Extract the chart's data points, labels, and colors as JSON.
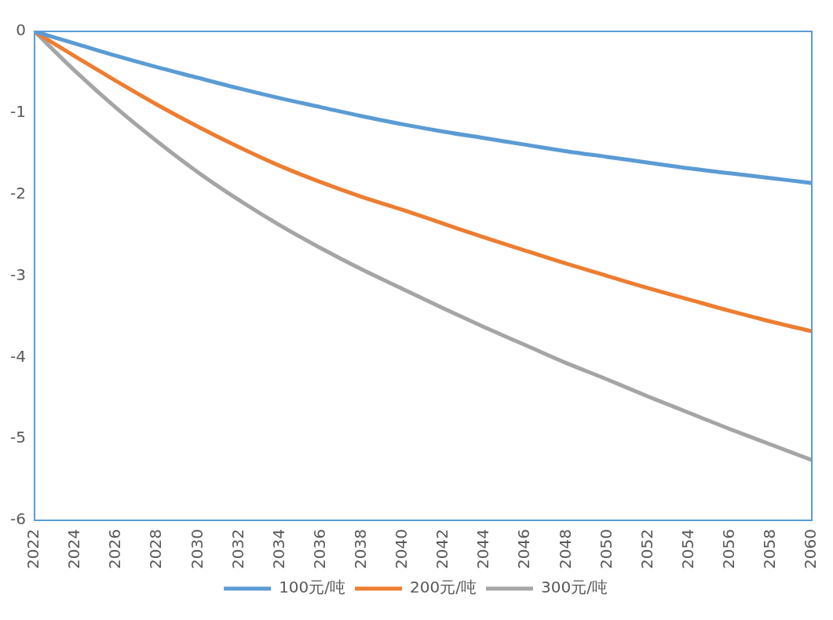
{
  "chart_data": {
    "type": "line",
    "x": [
      2022,
      2024,
      2026,
      2028,
      2030,
      2032,
      2034,
      2036,
      2038,
      2040,
      2042,
      2044,
      2046,
      2048,
      2050,
      2052,
      2054,
      2056,
      2058,
      2060
    ],
    "series": [
      {
        "name": "100元/吨",
        "color": "#5b9bd5",
        "values": [
          0,
          -0.15,
          -0.3,
          -0.44,
          -0.57,
          -0.7,
          -0.82,
          -0.93,
          -1.04,
          -1.14,
          -1.23,
          -1.31,
          -1.39,
          -1.47,
          -1.54,
          -1.61,
          -1.68,
          -1.74,
          -1.8,
          -1.86
        ]
      },
      {
        "name": "200元/吨",
        "color": "#ed7d31",
        "values": [
          0,
          -0.31,
          -0.61,
          -0.9,
          -1.17,
          -1.42,
          -1.65,
          -1.85,
          -2.03,
          -2.19,
          -2.36,
          -2.53,
          -2.69,
          -2.85,
          -3.0,
          -3.15,
          -3.29,
          -3.43,
          -3.56,
          -3.68
        ]
      },
      {
        "name": "300元/吨",
        "color": "#a5a5a5",
        "values": [
          0,
          -0.49,
          -0.94,
          -1.35,
          -1.73,
          -2.07,
          -2.38,
          -2.66,
          -2.92,
          -3.16,
          -3.4,
          -3.63,
          -3.85,
          -4.07,
          -4.27,
          -4.48,
          -4.68,
          -4.88,
          -5.07,
          -5.26
        ]
      }
    ],
    "xlim": [
      2022,
      2060
    ],
    "xticks": [
      2022,
      2024,
      2026,
      2028,
      2030,
      2032,
      2034,
      2036,
      2038,
      2040,
      2042,
      2044,
      2046,
      2048,
      2050,
      2052,
      2054,
      2056,
      2058,
      2060
    ],
    "ylim": [
      -6,
      0
    ],
    "yticks": [
      0,
      -1,
      -2,
      -3,
      -4,
      -5,
      -6
    ],
    "grid": false,
    "legend": "bottom",
    "marker": "none",
    "line_style": "solid"
  }
}
